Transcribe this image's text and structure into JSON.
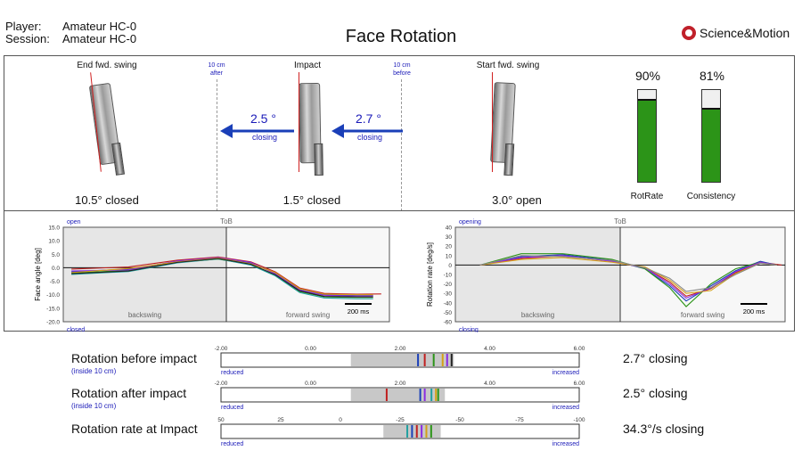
{
  "header": {
    "player_label": "Player:",
    "player_value": "Amateur HC-0",
    "session_label": "Session:",
    "session_value": "Amateur HC-0",
    "title": "Face Rotation",
    "brand": "Science&Motion"
  },
  "top_panel": {
    "end_label": "End fwd. swing",
    "impact_label": "Impact",
    "start_label": "Start fwd. swing",
    "after_marker": [
      "10 cm",
      "after"
    ],
    "before_marker": [
      "10 cm",
      "before"
    ],
    "left_arrow": {
      "value": "2.5 °",
      "sub": "closing"
    },
    "right_arrow": {
      "value": "2.7 °",
      "sub": "closing"
    },
    "end_caption": "10.5° closed",
    "impact_caption": "1.5° closed",
    "start_caption": "3.0° open",
    "rotrate": {
      "pct_label": "90%",
      "level": 0.9,
      "label": "RotRate"
    },
    "consistency": {
      "pct_label": "81%",
      "level": 0.81,
      "label": "Consistency"
    },
    "colors": {
      "arrow": "#1a3fb8",
      "gauge": "#2c9418",
      "ref_line": "#d02020"
    }
  },
  "chart_data": [
    {
      "type": "line",
      "title": "",
      "top_label": "open",
      "bottom_label": "closed",
      "center_label": "ToB",
      "left_region": "backswing",
      "right_region": "forward swing",
      "scale_label": "200 ms",
      "ylabel": "Face angle [deg]",
      "ylim": [
        -20,
        15
      ],
      "yticks": [
        "15.0",
        "10.0",
        "5.0",
        "0.0",
        "-5.0",
        "-10.0",
        "-15.0",
        "-20.0"
      ],
      "x_range": [
        -1,
        1
      ],
      "series": [
        {
          "color": "#c02020",
          "x": [
            -0.95,
            -0.6,
            -0.3,
            -0.05,
            0.15,
            0.3,
            0.45,
            0.6,
            0.8,
            0.95
          ],
          "y": [
            -0.5,
            0.3,
            2.8,
            4.0,
            2.2,
            -1.5,
            -7.5,
            -9.5,
            -9.8,
            -9.7
          ]
        },
        {
          "color": "#1a3fb8",
          "x": [
            -0.95,
            -0.6,
            -0.3,
            -0.05,
            0.15,
            0.3,
            0.45,
            0.6,
            0.8,
            0.9
          ],
          "y": [
            -1.5,
            -0.5,
            2.3,
            3.5,
            1.8,
            -2.0,
            -8.0,
            -10.0,
            -10.3,
            -10.3
          ]
        },
        {
          "color": "#2c9418",
          "x": [
            -0.95,
            -0.6,
            -0.3,
            -0.05,
            0.15,
            0.3,
            0.45,
            0.6,
            0.8,
            0.9
          ],
          "y": [
            -2.0,
            -1.0,
            2.0,
            3.2,
            1.2,
            -2.8,
            -8.8,
            -10.8,
            -11.0,
            -11.0
          ]
        },
        {
          "color": "#8a2be2",
          "x": [
            -0.95,
            -0.6,
            -0.3,
            -0.05,
            0.15,
            0.3,
            0.45,
            0.6,
            0.8,
            0.9
          ],
          "y": [
            -1.2,
            -0.8,
            2.5,
            3.8,
            2.0,
            -2.3,
            -8.3,
            -10.2,
            -10.5,
            -10.5
          ]
        },
        {
          "color": "#d4a017",
          "x": [
            -0.95,
            -0.6,
            -0.3,
            -0.05,
            0.15,
            0.3,
            0.45,
            0.6,
            0.8,
            0.9
          ],
          "y": [
            -1.8,
            -0.3,
            2.2,
            3.6,
            1.5,
            -1.8,
            -7.8,
            -9.8,
            -10.0,
            -10.0
          ]
        },
        {
          "color": "#20a0a0",
          "x": [
            -0.95,
            -0.6,
            -0.3,
            -0.05,
            0.15,
            0.3,
            0.45,
            0.6,
            0.8,
            0.9
          ],
          "y": [
            -2.5,
            -1.4,
            1.8,
            3.3,
            1.0,
            -3.0,
            -9.2,
            -11.2,
            -11.5,
            -11.5
          ]
        },
        {
          "color": "#222222",
          "x": [
            -0.95,
            -0.6,
            -0.3,
            -0.05,
            0.15,
            0.3,
            0.45,
            0.6,
            0.8,
            0.9
          ],
          "y": [
            -2.2,
            -1.2,
            2.0,
            3.4,
            1.3,
            -2.6,
            -8.6,
            -10.6,
            -10.8,
            -10.8
          ]
        }
      ]
    },
    {
      "type": "line",
      "title": "",
      "top_label": "opening",
      "bottom_label": "closing",
      "center_label": "ToB",
      "left_region": "backswing",
      "right_region": "forward swing",
      "scale_label": "200 ms",
      "ylabel": "Rotation rate [deg/s]",
      "ylim": [
        -60,
        40
      ],
      "yticks": [
        "40",
        "30",
        "20",
        "10",
        "0",
        "-10",
        "-20",
        "-30",
        "-40",
        "-50",
        "-60"
      ],
      "x_range": [
        -1,
        1
      ],
      "series": [
        {
          "color": "#c02020",
          "x": [
            -0.85,
            -0.6,
            -0.35,
            -0.05,
            0.15,
            0.3,
            0.4,
            0.55,
            0.7,
            0.85,
            0.98
          ],
          "y": [
            0,
            7,
            10,
            4,
            -3,
            -18,
            -33,
            -25,
            -8,
            3,
            0
          ]
        },
        {
          "color": "#1a3fb8",
          "x": [
            -0.85,
            -0.6,
            -0.35,
            -0.05,
            0.15,
            0.3,
            0.4,
            0.55,
            0.7,
            0.85,
            0.95
          ],
          "y": [
            0,
            9,
            11,
            5,
            -4,
            -22,
            -38,
            -22,
            -6,
            4,
            0
          ]
        },
        {
          "color": "#2c9418",
          "x": [
            -0.85,
            -0.6,
            -0.35,
            -0.05,
            0.15,
            0.3,
            0.4,
            0.55,
            0.7,
            0.85,
            0.95
          ],
          "y": [
            0,
            12,
            12,
            6,
            -4,
            -24,
            -44,
            -20,
            -4,
            3,
            0
          ]
        },
        {
          "color": "#8a2be2",
          "x": [
            -0.85,
            -0.6,
            -0.35,
            -0.05,
            0.15,
            0.3,
            0.4,
            0.55,
            0.7,
            0.85,
            0.95
          ],
          "y": [
            0,
            8,
            10,
            4,
            -3,
            -20,
            -35,
            -24,
            -7,
            3,
            0
          ]
        },
        {
          "color": "#d4a017",
          "x": [
            -0.85,
            -0.6,
            -0.35,
            -0.05,
            0.15,
            0.3,
            0.4,
            0.55,
            0.7,
            0.85,
            0.95
          ],
          "y": [
            0,
            6,
            8,
            3,
            -2,
            -16,
            -30,
            -27,
            -9,
            2,
            0
          ]
        },
        {
          "color": "#888888",
          "x": [
            -0.85,
            -0.6,
            -0.35,
            -0.05,
            0.15,
            0.3,
            0.4,
            0.55,
            0.7,
            0.85,
            0.95
          ],
          "y": [
            0,
            10,
            9,
            5,
            -3,
            -14,
            -28,
            -24,
            -10,
            2,
            0
          ]
        }
      ]
    },
    {
      "type": "bar",
      "title": "Rotation before impact",
      "subtitle": "(inside 10 cm)",
      "xlim": [
        -2,
        6
      ],
      "ticks": [
        "-2.00",
        "0.00",
        "2.00",
        "4.00",
        "6.00"
      ],
      "left_label": "reduced",
      "right_label": "increased",
      "range_band": [
        0.9,
        3.2
      ],
      "markers": [
        {
          "value": 2.4,
          "color": "#1a3fb8"
        },
        {
          "value": 2.55,
          "color": "#c02020"
        },
        {
          "value": 2.75,
          "color": "#2c9418"
        },
        {
          "value": 2.95,
          "color": "#d4a017"
        },
        {
          "value": 3.05,
          "color": "#8a2be2"
        },
        {
          "value": 3.15,
          "color": "#222222"
        }
      ],
      "result": "2.7° closing"
    },
    {
      "type": "bar",
      "title": "Rotation after impact",
      "subtitle": "(inside 10 cm)",
      "xlim": [
        -2,
        6
      ],
      "ticks": [
        "-2.00",
        "0.00",
        "2.00",
        "4.00",
        "6.00"
      ],
      "left_label": "reduced",
      "right_label": "increased",
      "range_band": [
        0.9,
        3.0
      ],
      "markers": [
        {
          "value": 1.7,
          "color": "#c02020"
        },
        {
          "value": 2.45,
          "color": "#1a3fb8"
        },
        {
          "value": 2.55,
          "color": "#8a2be2"
        },
        {
          "value": 2.7,
          "color": "#20a0a0"
        },
        {
          "value": 2.8,
          "color": "#d4a017"
        },
        {
          "value": 2.85,
          "color": "#2c9418"
        }
      ],
      "result": "2.5° closing"
    },
    {
      "type": "bar",
      "title": "Rotation rate at Impact",
      "xlim": [
        50,
        -100
      ],
      "ticks": [
        "50",
        "25",
        "0",
        "-25",
        "-50",
        "-75",
        "-100"
      ],
      "left_label": "reduced",
      "right_label": "increased",
      "range_band": [
        -18,
        -42
      ],
      "markers": [
        {
          "value": -28,
          "color": "#20a0a0"
        },
        {
          "value": -30,
          "color": "#1a3fb8"
        },
        {
          "value": -32,
          "color": "#c02020"
        },
        {
          "value": -34,
          "color": "#8a2be2"
        },
        {
          "value": -36,
          "color": "#d4a017"
        },
        {
          "value": -38,
          "color": "#2c9418"
        }
      ],
      "result": "34.3°/s closing"
    }
  ]
}
